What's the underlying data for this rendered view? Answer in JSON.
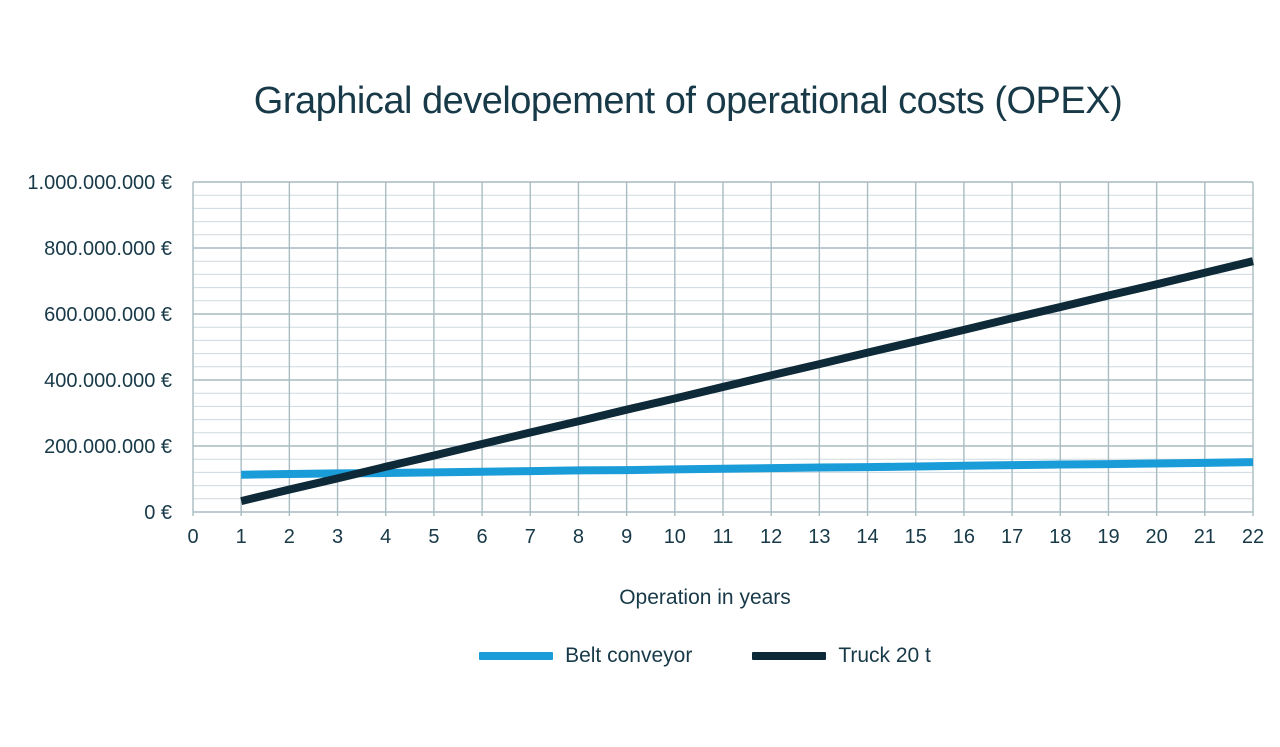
{
  "title": "Graphical developement of operational costs (OPEX)",
  "colors": {
    "text": "#173948",
    "background": "#ffffff",
    "grid_minor": "#cfdade",
    "grid_major": "#a8bcc2",
    "belt_conveyor": "#1a9cd8",
    "truck": "#0e2937"
  },
  "chart_data": {
    "type": "line",
    "title": "Graphical developement of operational costs (OPEX)",
    "xlabel": "Operation in years",
    "ylabel": "",
    "unit": "million EUR",
    "xlim": [
      0,
      22
    ],
    "ylim": [
      0,
      1000
    ],
    "grid": "horizontal minor every 40M EUR, horizontal major every 200M EUR, vertical every year",
    "legend_position": "bottom",
    "x_ticks": [
      0,
      1,
      2,
      3,
      4,
      5,
      6,
      7,
      8,
      9,
      10,
      11,
      12,
      13,
      14,
      15,
      16,
      17,
      18,
      19,
      20,
      21,
      22
    ],
    "y_ticks": [
      {
        "value": 0,
        "label": "0 €"
      },
      {
        "value": 200,
        "label": "200.000.000 €"
      },
      {
        "value": 400,
        "label": "400.000.000 €"
      },
      {
        "value": 600,
        "label": "600.000.000 €"
      },
      {
        "value": 800,
        "label": "800.000.000 €"
      },
      {
        "value": 1000,
        "label": "1.000.000.000 €"
      }
    ],
    "y_minor_step": 40,
    "x": [
      1,
      2,
      3,
      4,
      5,
      6,
      7,
      8,
      9,
      10,
      11,
      12,
      13,
      14,
      15,
      16,
      17,
      18,
      19,
      20,
      21,
      22
    ],
    "series": [
      {
        "name": "Belt conveyor",
        "color": "#1a9cd8",
        "values": [
          113,
          115,
          117,
          118,
          120,
          122,
          124,
          126,
          127,
          129,
          131,
          133,
          135,
          136,
          138,
          140,
          142,
          144,
          145,
          147,
          149,
          151
        ]
      },
      {
        "name": "Truck 20 t",
        "color": "#0e2937",
        "values": [
          33,
          68,
          102,
          137,
          171,
          206,
          241,
          275,
          310,
          344,
          379,
          414,
          448,
          483,
          517,
          552,
          587,
          621,
          656,
          690,
          725,
          760
        ]
      }
    ]
  }
}
